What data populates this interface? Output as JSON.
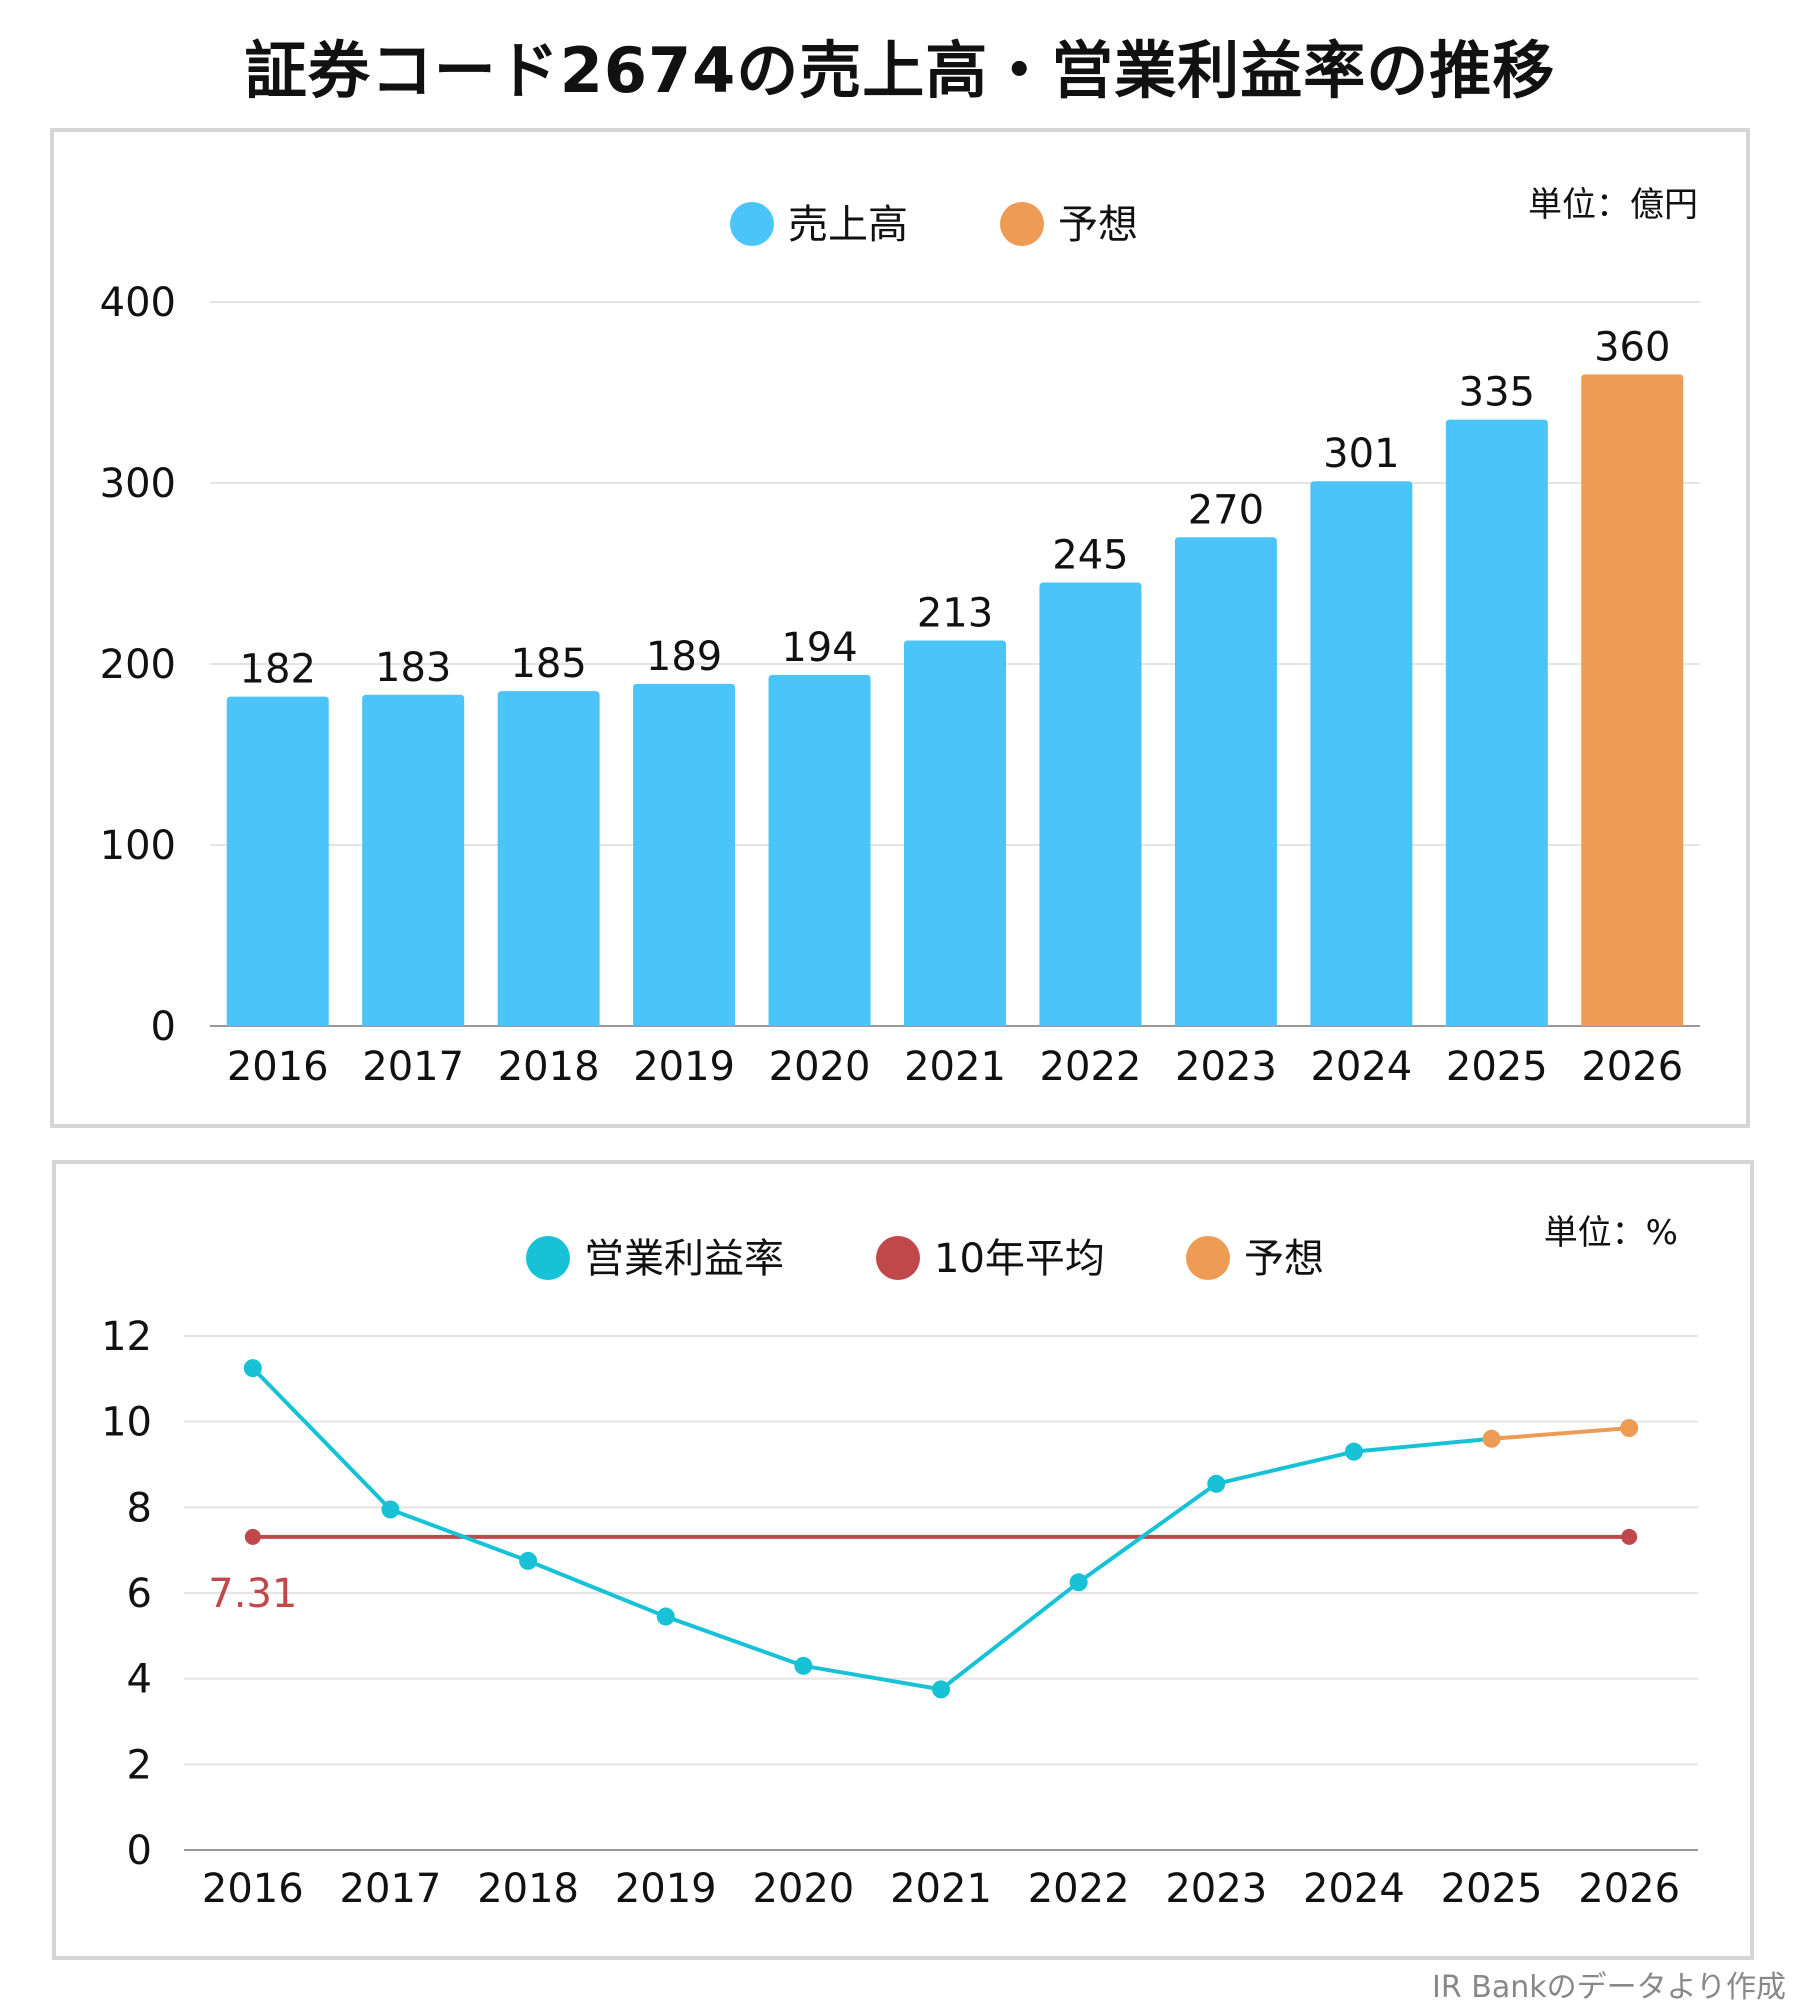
{
  "page_title": "証券コード2674の売上高・営業利益率の推移",
  "footer": "IR Bankのデータより作成",
  "colors": {
    "bar": "#4BC4FA",
    "forecast": "#EE9B55",
    "rate_line": "#17C2D6",
    "average": "#C0484A",
    "grid": "#e4e4e4",
    "axis": "#999999"
  },
  "chart_data": [
    {
      "type": "bar",
      "unit_label": "単位：億円",
      "legend": [
        {
          "label": "売上高",
          "color": "#4BC4FA"
        },
        {
          "label": "予想",
          "color": "#EE9B55"
        }
      ],
      "categories": [
        "2016",
        "2017",
        "2018",
        "2019",
        "2020",
        "2021",
        "2022",
        "2023",
        "2024",
        "2025",
        "2026"
      ],
      "values": [
        182,
        183,
        185,
        189,
        194,
        213,
        245,
        270,
        301,
        335,
        360
      ],
      "forecast_flags": [
        false,
        false,
        false,
        false,
        false,
        false,
        false,
        false,
        false,
        false,
        true
      ],
      "ylim": [
        0,
        400
      ],
      "yticks": [
        0,
        100,
        200,
        300,
        400
      ],
      "grid": true,
      "legend_position": "top-center"
    },
    {
      "type": "line",
      "unit_label": "単位：%",
      "legend": [
        {
          "label": "営業利益率",
          "color": "#17C2D6"
        },
        {
          "label": "10年平均",
          "color": "#C0484A"
        },
        {
          "label": "予想",
          "color": "#EE9B55"
        }
      ],
      "categories": [
        "2016",
        "2017",
        "2018",
        "2019",
        "2020",
        "2021",
        "2022",
        "2023",
        "2024",
        "2025",
        "2026"
      ],
      "series": [
        {
          "name": "営業利益率",
          "values": [
            11.25,
            7.95,
            6.75,
            5.45,
            4.3,
            3.75,
            6.25,
            8.55,
            9.3,
            9.6,
            9.85
          ],
          "forecast_from_index": 9
        }
      ],
      "average": {
        "value": 7.31,
        "label": "7.31"
      },
      "ylim": [
        0,
        12
      ],
      "yticks": [
        0,
        2,
        4,
        6,
        8,
        10,
        12
      ],
      "grid": true,
      "legend_position": "top-center"
    }
  ]
}
